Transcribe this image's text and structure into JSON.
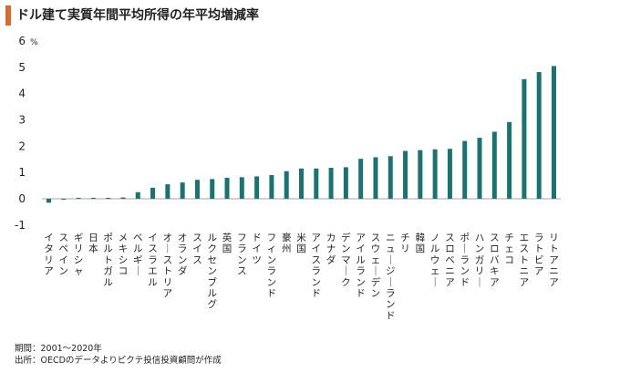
{
  "title": "ドル建て実質年間平均所得の年平均増減率",
  "colors": {
    "accent": "#d9692e",
    "bar": "#1a7373",
    "zero_line": "#888888"
  },
  "chart_data": {
    "type": "bar",
    "title": "ドル建て実質年間平均所得の年平均増減率",
    "unit_label": "%",
    "ylim": [
      -1,
      6
    ],
    "yticks": [
      6,
      5,
      4,
      3,
      2,
      1,
      0,
      -1
    ],
    "ytick_labels": [
      "6",
      "5",
      "4",
      "3",
      "2",
      "1",
      "0",
      "-1"
    ],
    "grid": false,
    "categories": [
      "イタリア",
      "スペイン",
      "ギリシャ",
      "日本",
      "ポルトガル",
      "メキシコ",
      "ベルギー",
      "イスラエル",
      "オーストリア",
      "オランダ",
      "スイス",
      "ルクセンブルグ",
      "英国",
      "フランス",
      "ドイツ",
      "フィンランド",
      "豪州",
      "米国",
      "アイスランド",
      "カナダ",
      "デンマーク",
      "アイルランド",
      "スウェーデン",
      "ニュージーランド",
      "チリ",
      "韓国",
      "ノルウェー",
      "スロベニア",
      "ポーランド",
      "ハンガリー",
      "スロバキア",
      "チェコ",
      "エストニア",
      "ラトビア",
      "リトアニア"
    ],
    "values": [
      -0.15,
      -0.03,
      0.0,
      0.02,
      0.03,
      0.05,
      0.25,
      0.42,
      0.55,
      0.62,
      0.72,
      0.75,
      0.8,
      0.82,
      0.85,
      0.9,
      1.05,
      1.15,
      1.15,
      1.18,
      1.2,
      1.52,
      1.58,
      1.62,
      1.82,
      1.85,
      1.88,
      1.9,
      2.2,
      2.32,
      2.55,
      2.92,
      4.55,
      4.82,
      5.05
    ]
  },
  "footer": {
    "period": "期間：2001～2020年",
    "source": "出所：OECDのデータよりピクテ投信投資顧問が作成"
  }
}
